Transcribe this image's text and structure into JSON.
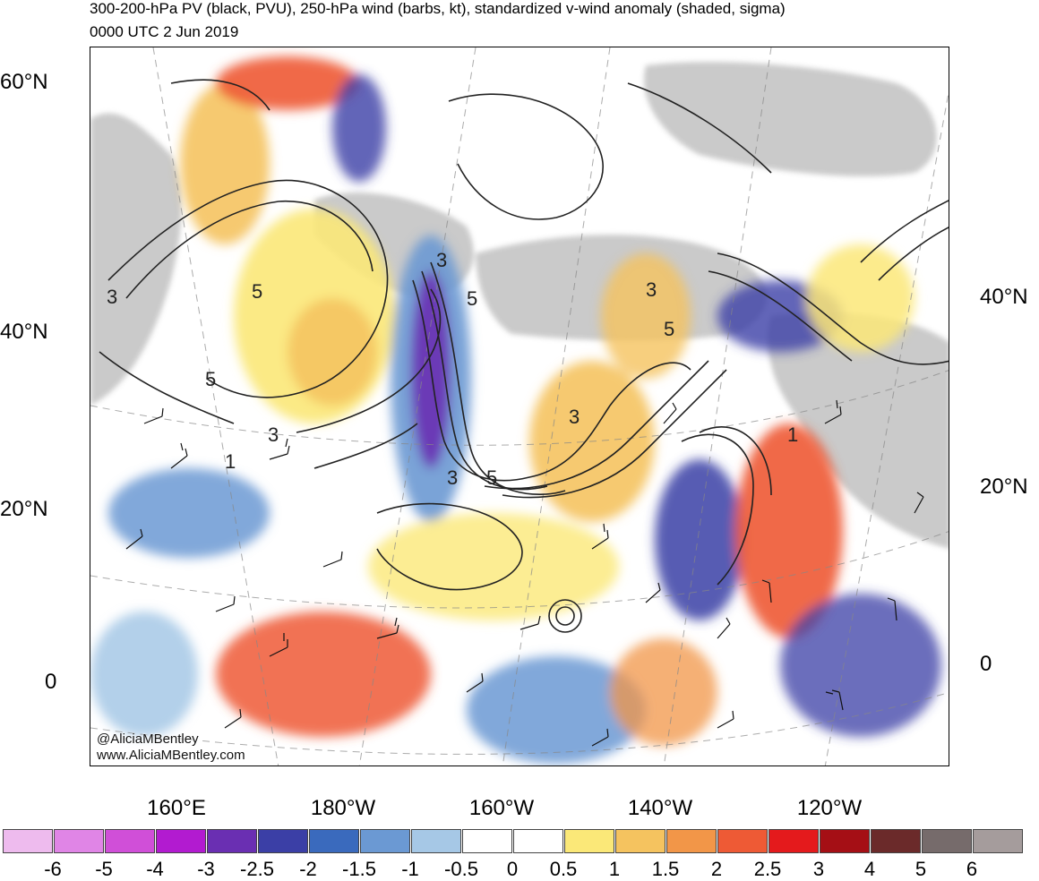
{
  "header": {
    "title": "300-200-hPa PV (black, PVU), 250-hPa wind (barbs, kt), standardized v-wind anomaly (shaded, sigma)",
    "valid_time": "0000 UTC 2 Jun 2019"
  },
  "axes": {
    "left_lat_labels": [
      "60°N",
      "40°N",
      "20°N",
      "0"
    ],
    "right_lat_labels": [
      "40°N",
      "20°N",
      "0"
    ],
    "lon_labels": [
      "160°E",
      "180°W",
      "160°W",
      "140°W",
      "120°W"
    ]
  },
  "map": {
    "pv_contour_labels": [
      "3",
      "5",
      "3",
      "5",
      "3",
      "1",
      "3",
      "5",
      "3",
      "5",
      "3",
      "5",
      "1"
    ],
    "land_color": "#c8c8c8",
    "contour_color": "#222222"
  },
  "credits": {
    "twitter": "@AliciaMBentley",
    "website": "www.AliciaMBentley.com"
  },
  "colorbar": {
    "colors": [
      "#eebbee",
      "#e085e6",
      "#d04fd8",
      "#b21bd0",
      "#6a2fb2",
      "#3b3fa6",
      "#3a6abd",
      "#6b99d3",
      "#a6c8e6",
      "#ffffff",
      "#ffffff",
      "#fbe878",
      "#f5c35f",
      "#f29648",
      "#ee5a35",
      "#e41a1c",
      "#a50f15",
      "#6b2a2a",
      "#766b6b",
      "#a59c9c"
    ],
    "labels": [
      "-6",
      "-5",
      "-4",
      "-3",
      "-2.5",
      "-2",
      "-1.5",
      "-1",
      "-0.5",
      "0",
      "0.5",
      "1",
      "1.5",
      "2",
      "2.5",
      "3",
      "4",
      "5",
      "6"
    ]
  }
}
